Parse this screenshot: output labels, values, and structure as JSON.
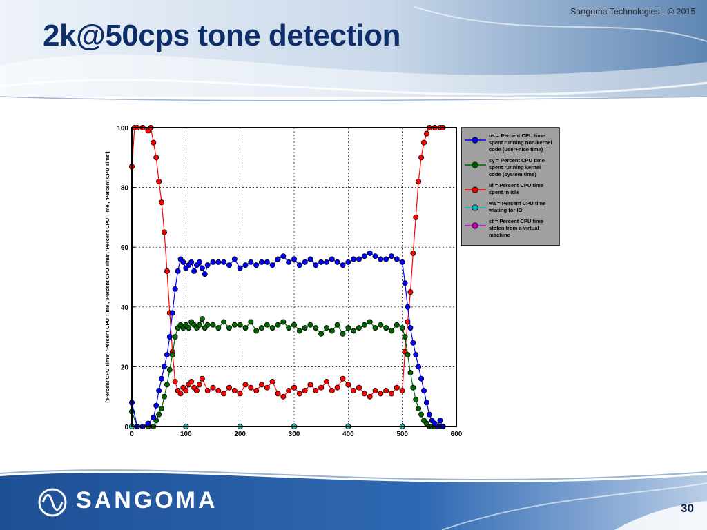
{
  "slide": {
    "title": "2k@50cps tone detection",
    "copyright": "Sangoma Technologies - © 2015",
    "brand": "SANGOMA",
    "page_number": "30"
  },
  "colors": {
    "title": "#0f2f6b",
    "us": "#0000ff",
    "sy": "#006400",
    "id": "#ff0000",
    "wa": "#00bfbf",
    "st": "#bf00bf",
    "legend_bg": "#a0a0a0",
    "footer": "#1a4d8f"
  },
  "chart_data": {
    "type": "line",
    "title": "",
    "xlabel": "",
    "ylabel": "['Percent CPU Time', 'Percent CPU Time', 'Percent CPU Time', 'Percent CPU Time', 'Percent CPU Time']",
    "xlim": [
      0,
      600
    ],
    "ylim": [
      0,
      100
    ],
    "xticks": [
      "0",
      "100",
      "200",
      "300",
      "400",
      "500",
      "600"
    ],
    "yticks": [
      "0",
      "20",
      "40",
      "60",
      "80",
      "100"
    ],
    "grid": true,
    "legend_position": "outside-right",
    "markers": "circle",
    "series": [
      {
        "key": "us",
        "name": "us = Percent CPU time spent running non-kernel code (user+nice time)",
        "legend_lines": [
          "us = Percent CPU time",
          "spent running non-kernel",
          "code (user+nice time)"
        ],
        "color": "#0000ff",
        "x": [
          0,
          10,
          20,
          30,
          40,
          45,
          50,
          55,
          60,
          65,
          70,
          75,
          80,
          85,
          90,
          95,
          100,
          105,
          110,
          115,
          120,
          125,
          130,
          135,
          140,
          150,
          160,
          170,
          180,
          190,
          200,
          210,
          220,
          230,
          240,
          250,
          260,
          270,
          280,
          290,
          300,
          310,
          320,
          330,
          340,
          350,
          360,
          370,
          380,
          390,
          400,
          410,
          420,
          430,
          440,
          450,
          460,
          470,
          480,
          490,
          500,
          505,
          510,
          515,
          520,
          525,
          530,
          535,
          540,
          545,
          550,
          555,
          560,
          565,
          570,
          575
        ],
        "y": [
          8,
          0,
          0,
          1,
          3,
          7,
          12,
          16,
          20,
          24,
          30,
          38,
          46,
          52,
          56,
          55,
          53,
          54,
          55,
          52,
          54,
          55,
          53,
          51,
          54,
          55,
          55,
          55,
          54,
          56,
          53,
          54,
          55,
          54,
          55,
          55,
          54,
          56,
          57,
          55,
          56,
          54,
          55,
          56,
          54,
          55,
          55,
          56,
          55,
          54,
          55,
          56,
          56,
          57,
          58,
          57,
          56,
          56,
          57,
          56,
          55,
          48,
          40,
          33,
          28,
          24,
          20,
          16,
          12,
          8,
          4,
          2,
          1,
          0,
          2,
          0
        ]
      },
      {
        "key": "sy",
        "name": "sy = Percent CPU time spent running kernel code (system time)",
        "legend_lines": [
          "sy = Percent CPU time",
          "spent running kernel",
          "code (system time)"
        ],
        "color": "#006400",
        "x": [
          0,
          10,
          20,
          30,
          40,
          45,
          50,
          55,
          60,
          65,
          70,
          75,
          80,
          85,
          90,
          95,
          100,
          105,
          110,
          115,
          120,
          125,
          130,
          135,
          140,
          150,
          160,
          170,
          180,
          190,
          200,
          210,
          220,
          230,
          240,
          250,
          260,
          270,
          280,
          290,
          300,
          310,
          320,
          330,
          340,
          350,
          360,
          370,
          380,
          390,
          400,
          410,
          420,
          430,
          440,
          450,
          460,
          470,
          480,
          490,
          500,
          505,
          510,
          515,
          520,
          525,
          530,
          535,
          540,
          545,
          550,
          555,
          560,
          565,
          570,
          575
        ],
        "y": [
          5,
          0,
          0,
          0,
          0,
          2,
          4,
          6,
          10,
          14,
          19,
          24,
          30,
          33,
          34,
          33,
          34,
          33,
          35,
          34,
          33,
          34,
          36,
          33,
          34,
          34,
          33,
          35,
          33,
          34,
          34,
          33,
          35,
          32,
          33,
          34,
          33,
          34,
          35,
          33,
          34,
          32,
          33,
          34,
          33,
          31,
          33,
          32,
          34,
          31,
          33,
          32,
          33,
          34,
          35,
          33,
          34,
          33,
          32,
          34,
          33,
          30,
          24,
          18,
          13,
          9,
          6,
          4,
          2,
          1,
          0,
          0,
          0,
          0,
          0,
          0
        ]
      },
      {
        "key": "id",
        "name": "id = Percent CPU time spent in idle",
        "legend_lines": [
          "id = Percent CPU time",
          "spent in idle"
        ],
        "color": "#ff0000",
        "x": [
          0,
          5,
          10,
          20,
          30,
          35,
          40,
          45,
          50,
          55,
          60,
          65,
          70,
          75,
          80,
          85,
          90,
          95,
          100,
          105,
          110,
          115,
          120,
          125,
          130,
          140,
          150,
          160,
          170,
          180,
          190,
          200,
          210,
          220,
          230,
          240,
          250,
          260,
          270,
          280,
          290,
          300,
          310,
          320,
          330,
          340,
          350,
          360,
          370,
          380,
          390,
          400,
          410,
          420,
          430,
          440,
          450,
          460,
          470,
          480,
          490,
          500,
          505,
          510,
          515,
          520,
          525,
          530,
          535,
          540,
          545,
          550,
          560,
          570,
          575
        ],
        "y": [
          87,
          100,
          100,
          100,
          99,
          100,
          95,
          90,
          82,
          75,
          65,
          52,
          38,
          25,
          15,
          12,
          11,
          13,
          12,
          14,
          15,
          13,
          12,
          14,
          16,
          12,
          13,
          12,
          11,
          13,
          12,
          11,
          14,
          13,
          12,
          14,
          13,
          15,
          11,
          10,
          12,
          13,
          11,
          12,
          14,
          12,
          13,
          15,
          12,
          13,
          16,
          14,
          12,
          13,
          11,
          10,
          12,
          11,
          12,
          11,
          13,
          12,
          25,
          35,
          45,
          58,
          70,
          82,
          90,
          95,
          98,
          100,
          100,
          100,
          100
        ]
      },
      {
        "key": "wa",
        "name": "wa = Percent CPU time wiating for IO",
        "legend_lines": [
          "wa = Percent CPU time",
          "wiating for IO"
        ],
        "color": "#00bfbf",
        "x": [
          0,
          100,
          200,
          300,
          400,
          500,
          575
        ],
        "y": [
          0,
          0,
          0,
          0,
          0,
          0,
          0
        ]
      },
      {
        "key": "st",
        "name": "st = Percent CPU time stolen from a virtual machine",
        "legend_lines": [
          "st = Percent CPU time",
          "stolen from a virtual",
          "machine"
        ],
        "color": "#bf00bf",
        "x": [
          0,
          100,
          200,
          300,
          400,
          500,
          575
        ],
        "y": [
          0,
          0,
          0,
          0,
          0,
          0,
          0
        ]
      }
    ]
  }
}
